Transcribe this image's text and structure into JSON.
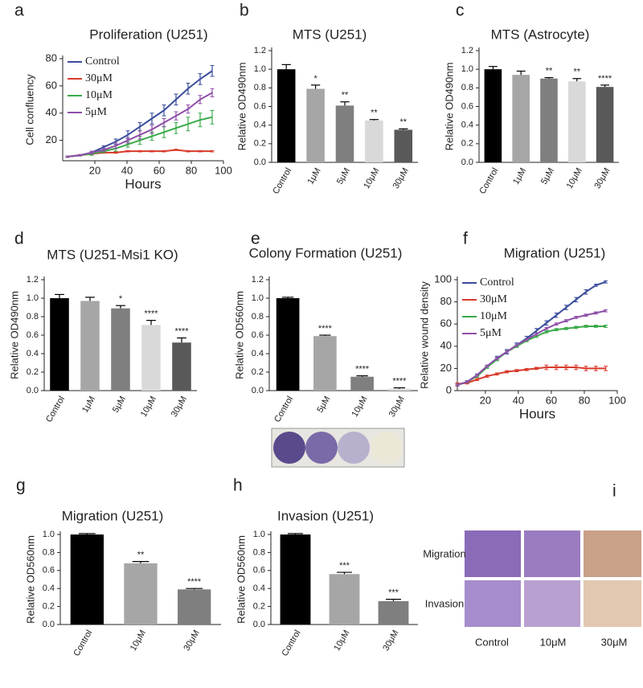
{
  "chart_data": [
    {
      "type": "line",
      "panel": "a",
      "title": "Proliferation (U251)",
      "xlabel": "Hours",
      "ylabel": "Cell confluency",
      "x": [
        3,
        10.5,
        18,
        25.5,
        33,
        40.5,
        48,
        55.5,
        63,
        70.5,
        78,
        85.5,
        93
      ],
      "series": [
        {
          "name": "Control",
          "color": "#3a4d9c",
          "values": [
            8,
            9,
            11,
            15,
            19,
            24,
            30,
            36,
            42,
            50,
            58,
            65,
            71
          ],
          "errors": [
            0.5,
            0.5,
            1,
            1,
            2,
            3,
            3,
            4,
            4,
            4,
            4,
            4,
            4
          ]
        },
        {
          "name": "30μM",
          "color": "#d93a2b",
          "values": [
            8,
            9,
            10,
            11,
            11,
            12,
            12,
            12,
            12,
            13,
            12,
            12,
            12
          ],
          "errors": [
            0.5,
            0.5,
            0.5,
            0.5,
            0.5,
            0.5,
            0.5,
            0.5,
            0.5,
            0.5,
            0.5,
            0.5,
            0.5
          ]
        },
        {
          "name": "10μM",
          "color": "#3aaa4a",
          "values": [
            8,
            9,
            10,
            12,
            14,
            17,
            20,
            23,
            26,
            29,
            32,
            35,
            37
          ],
          "errors": [
            0.5,
            0.5,
            1,
            1,
            2,
            2,
            3,
            3,
            4,
            4,
            5,
            5,
            5
          ]
        },
        {
          "name": "5μM",
          "color": "#8e4fa8",
          "values": [
            8,
            9,
            11,
            13,
            16,
            20,
            24,
            28,
            33,
            38,
            43,
            50,
            55
          ],
          "errors": [
            0.5,
            0.5,
            1,
            1,
            2,
            2,
            3,
            3,
            3,
            3,
            3,
            3,
            3
          ]
        }
      ],
      "xlim": [
        0,
        100
      ],
      "xticks": [
        20,
        40,
        60,
        80,
        100
      ],
      "ylim": [
        5,
        80
      ],
      "yticks": [
        20,
        40,
        60,
        80
      ],
      "legend": "upper left"
    },
    {
      "type": "bar",
      "panel": "b",
      "title": "MTS (U251)",
      "ylabel": "Relative OD490nm",
      "categories": [
        "Control",
        "1μM",
        "5μM",
        "10μM",
        "30μM"
      ],
      "values": [
        1.0,
        0.79,
        0.61,
        0.45,
        0.35
      ],
      "errors": [
        0.05,
        0.04,
        0.04,
        0.01,
        0.01
      ],
      "annotations": [
        null,
        "*",
        "**",
        "**",
        "**"
      ],
      "colors": [
        "#000000",
        "#a6a6a6",
        "#7f7f7f",
        "#d9d9d9",
        "#595959"
      ],
      "ylim": [
        0,
        1.2
      ],
      "yticks": [
        {
          "value": 0,
          "label": "0.0"
        },
        0.2,
        0.4,
        0.6,
        0.8,
        {
          "value": 1,
          "label": "1.0"
        },
        1.2
      ]
    },
    {
      "type": "bar",
      "panel": "c",
      "title": "MTS (Astrocyte)",
      "ylabel": "Relative OD490nm",
      "categories": [
        "Control",
        "1μM",
        "5μM",
        "10μM",
        "30μM"
      ],
      "values": [
        1.0,
        0.94,
        0.9,
        0.87,
        0.81
      ],
      "errors": [
        0.03,
        0.04,
        0.01,
        0.03,
        0.02
      ],
      "annotations": [
        null,
        null,
        "**",
        "**",
        "****"
      ],
      "colors": [
        "#000000",
        "#a6a6a6",
        "#7f7f7f",
        "#d9d9d9",
        "#595959"
      ],
      "ylim": [
        0,
        1.2
      ],
      "yticks": [
        {
          "value": 0,
          "label": "0.0"
        },
        0.2,
        0.4,
        0.6,
        0.8,
        {
          "value": 1,
          "label": "1.0"
        },
        1.2
      ]
    },
    {
      "type": "bar",
      "panel": "d",
      "title": "MTS (U251-Msi1 KO)",
      "ylabel": "Relative OD490nm",
      "categories": [
        "Control",
        "1μM",
        "5μM",
        "10μM",
        "30μM"
      ],
      "values": [
        1.0,
        0.97,
        0.89,
        0.71,
        0.52
      ],
      "errors": [
        0.04,
        0.04,
        0.03,
        0.05,
        0.05
      ],
      "annotations": [
        null,
        null,
        "*",
        "****",
        "****"
      ],
      "colors": [
        "#000000",
        "#a6a6a6",
        "#7f7f7f",
        "#d9d9d9",
        "#595959"
      ],
      "ylim": [
        0,
        1.2
      ],
      "yticks": [
        {
          "value": 0,
          "label": "0.0"
        },
        0.2,
        0.4,
        0.6,
        0.8,
        {
          "value": 1,
          "label": "1.0"
        },
        1.2
      ]
    },
    {
      "type": "bar",
      "panel": "e",
      "title": "Colony Formation (U251)",
      "ylabel": "Relative OD560nm",
      "categories": [
        "Control",
        "5μM",
        "10μM",
        "30μM"
      ],
      "values": [
        1.0,
        0.59,
        0.15,
        0.02
      ],
      "errors": [
        0.01,
        0.01,
        0.01,
        0.01
      ],
      "annotations": [
        null,
        "****",
        "****",
        "****"
      ],
      "colors": [
        "#000000",
        "#a6a6a6",
        "#7f7f7f",
        "#d9d9d9"
      ],
      "ylim": [
        0,
        1.2
      ],
      "yticks": [
        {
          "value": 0,
          "label": "0.0"
        },
        0.2,
        0.4,
        0.6,
        0.8,
        {
          "value": 1,
          "label": "1.0"
        },
        1.2
      ]
    },
    {
      "type": "line",
      "panel": "f",
      "title": "Migration (U251)",
      "xlabel": "Hours",
      "ylabel": "Relative wound density",
      "x": [
        3,
        9,
        15,
        21,
        27,
        33,
        39,
        45,
        51,
        57,
        63,
        69,
        75,
        81,
        87,
        93
      ],
      "series": [
        {
          "name": "Control",
          "color": "#3a4d9c",
          "values": [
            5,
            8,
            14,
            22,
            29,
            35,
            41,
            47,
            54,
            61,
            68,
            75,
            82,
            89,
            95,
            98
          ],
          "errors": [
            1,
            1,
            1,
            1,
            2,
            2,
            2,
            2,
            2,
            2,
            2,
            2,
            2,
            2,
            1,
            1
          ]
        },
        {
          "name": "30μM",
          "color": "#d93a2b",
          "values": [
            6,
            7,
            10,
            13,
            15,
            17,
            18,
            19,
            20,
            21,
            21,
            21,
            21,
            20,
            20,
            20
          ],
          "errors": [
            1,
            1,
            1,
            1,
            1,
            1,
            1,
            1,
            1,
            2,
            2,
            2,
            2,
            2,
            2,
            2
          ]
        },
        {
          "name": "10μM",
          "color": "#3aaa4a",
          "values": [
            5,
            8,
            13,
            21,
            28,
            35,
            40,
            45,
            49,
            53,
            55,
            56,
            57,
            58,
            58,
            58
          ],
          "errors": [
            1,
            1,
            1,
            1,
            1,
            1,
            1,
            1,
            1,
            1,
            1,
            1,
            1,
            1,
            1,
            1
          ]
        },
        {
          "name": "5μM",
          "color": "#8e4fa8",
          "values": [
            5,
            8,
            14,
            22,
            29,
            35,
            41,
            46,
            51,
            56,
            60,
            63,
            66,
            68,
            70,
            72
          ],
          "errors": [
            1,
            1,
            1,
            1,
            1,
            1,
            1,
            1,
            1,
            1,
            1,
            1,
            1,
            1,
            1,
            1
          ]
        }
      ],
      "xlim": [
        3,
        100
      ],
      "xticks": [
        20,
        40,
        60,
        80,
        100
      ],
      "ylim": [
        0,
        100
      ],
      "yticks": [
        0,
        20,
        40,
        60,
        80,
        100
      ],
      "legend": "upper left"
    },
    {
      "type": "bar",
      "panel": "g",
      "title": "Migration (U251)",
      "ylabel": "Relative OD560nm",
      "categories": [
        "Control",
        "10μM",
        "30μM"
      ],
      "values": [
        1.0,
        0.68,
        0.39
      ],
      "errors": [
        0.01,
        0.02,
        0.01
      ],
      "annotations": [
        null,
        "**",
        "****"
      ],
      "colors": [
        "#000000",
        "#a6a6a6",
        "#7f7f7f"
      ],
      "ylim": [
        0,
        1.0
      ],
      "yticks": [
        {
          "value": 0,
          "label": "0.0"
        },
        0.2,
        0.4,
        0.6,
        0.8,
        {
          "value": 1,
          "label": "1.0"
        }
      ]
    },
    {
      "type": "bar",
      "panel": "h",
      "title": "Invasion (U251)",
      "ylabel": "Relative OD560nm",
      "categories": [
        "Control",
        "10μM",
        "30μM"
      ],
      "values": [
        1.0,
        0.56,
        0.26
      ],
      "errors": [
        0.01,
        0.02,
        0.02
      ],
      "annotations": [
        null,
        "***",
        "***"
      ],
      "colors": [
        "#000000",
        "#a6a6a6",
        "#7f7f7f"
      ],
      "ylim": [
        0,
        1.0
      ],
      "yticks": [
        {
          "value": 0,
          "label": "0.0"
        },
        0.2,
        0.4,
        0.6,
        0.8,
        {
          "value": 1,
          "label": "1.0"
        }
      ]
    }
  ],
  "panel_i": {
    "panel": "i",
    "row_labels": [
      "Migration",
      "Invasion"
    ],
    "col_labels": [
      "Control",
      "10μM",
      "30μM"
    ]
  }
}
